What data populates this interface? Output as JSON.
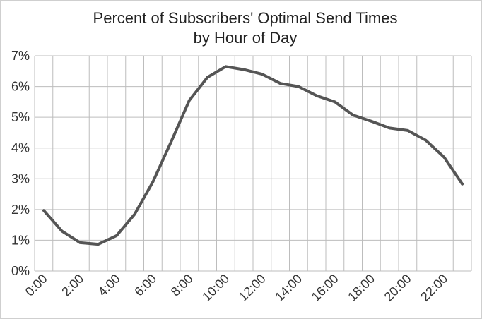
{
  "chart_data": {
    "type": "line",
    "title_line1": "Percent of Subscribers' Optimal Send Times",
    "title_line2": "by Hour of Day",
    "xlabel": "",
    "ylabel": "",
    "x": [
      0,
      1,
      2,
      3,
      4,
      5,
      6,
      7,
      8,
      9,
      10,
      11,
      12,
      13,
      14,
      15,
      16,
      17,
      18,
      19,
      20,
      21,
      22,
      23
    ],
    "series": [
      {
        "values": [
          1.97,
          1.3,
          0.92,
          0.87,
          1.15,
          1.85,
          2.9,
          4.2,
          5.55,
          6.3,
          6.65,
          6.55,
          6.4,
          6.1,
          6.0,
          5.7,
          5.5,
          5.07,
          4.87,
          4.65,
          4.57,
          4.25,
          3.7,
          2.83
        ],
        "color": "#555555"
      }
    ],
    "x_tick_labels": [
      "0:00",
      "2:00",
      "4:00",
      "6:00",
      "8:00",
      "10:00",
      "12:00",
      "14:00",
      "16:00",
      "18:00",
      "20:00",
      "22:00"
    ],
    "y_tick_labels": [
      "0%",
      "1%",
      "2%",
      "3%",
      "4%",
      "5%",
      "6%",
      "7%"
    ],
    "ylim": [
      0,
      7
    ],
    "y_unit": "%",
    "grid": true,
    "line_color": "#555555",
    "grid_color": "#bdbdbd"
  }
}
